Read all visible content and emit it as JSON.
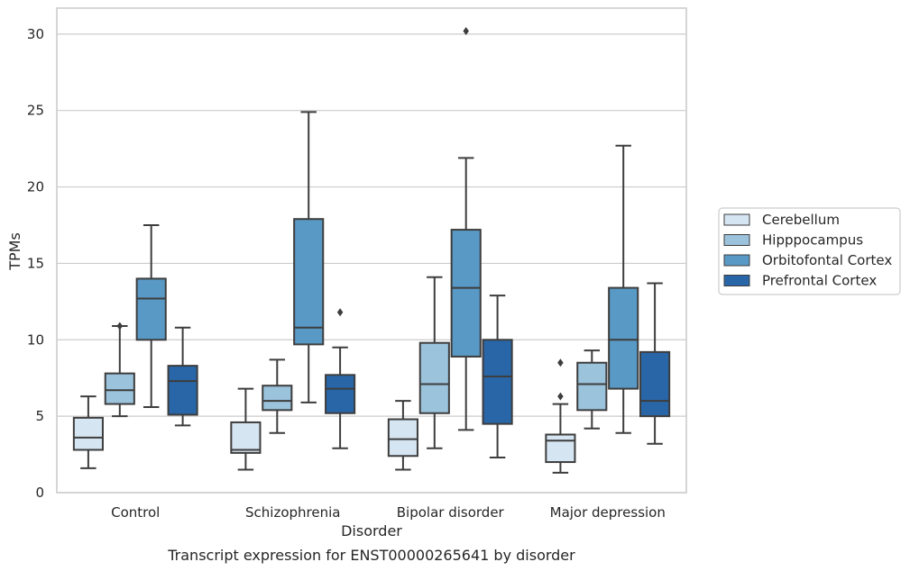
{
  "chart_data": {
    "type": "box",
    "xlabel": "Disorder",
    "ylabel": "TPMs",
    "caption": "Transcript expression for ENST00000265641 by disorder",
    "ylim": [
      0,
      31.7
    ],
    "yticks": [
      0,
      5,
      10,
      15,
      20,
      25,
      30
    ],
    "grid": "horizontal",
    "legend_position": "right",
    "categories": [
      "Control",
      "Schizophrenia",
      "Bipolar disorder",
      "Major depression"
    ],
    "series": [
      {
        "name": "Cerebellum",
        "color": "#d6e5f2",
        "boxes": [
          {
            "whisker_low": 1.6,
            "q1": 2.8,
            "median": 3.6,
            "q3": 4.9,
            "whisker_high": 6.3,
            "outliers": []
          },
          {
            "whisker_low": 1.5,
            "q1": 2.6,
            "median": 2.8,
            "q3": 4.6,
            "whisker_high": 6.8,
            "outliers": []
          },
          {
            "whisker_low": 1.5,
            "q1": 2.4,
            "median": 3.5,
            "q3": 4.8,
            "whisker_high": 6.0,
            "outliers": []
          },
          {
            "whisker_low": 1.3,
            "q1": 2.0,
            "median": 3.4,
            "q3": 3.8,
            "whisker_high": 5.8,
            "outliers": [
              6.3,
              8.5
            ]
          }
        ]
      },
      {
        "name": "Hipppocampus",
        "color": "#9bc3dc",
        "boxes": [
          {
            "whisker_low": 5.0,
            "q1": 5.8,
            "median": 6.7,
            "q3": 7.8,
            "whisker_high": 10.9,
            "outliers": [
              10.9
            ]
          },
          {
            "whisker_low": 3.9,
            "q1": 5.4,
            "median": 6.0,
            "q3": 7.0,
            "whisker_high": 8.7,
            "outliers": []
          },
          {
            "whisker_low": 2.9,
            "q1": 5.2,
            "median": 7.1,
            "q3": 9.8,
            "whisker_high": 14.1,
            "outliers": []
          },
          {
            "whisker_low": 4.2,
            "q1": 5.4,
            "median": 7.1,
            "q3": 8.5,
            "whisker_high": 9.3,
            "outliers": []
          }
        ]
      },
      {
        "name": "Orbitofontal Cortex",
        "color": "#5999c5",
        "boxes": [
          {
            "whisker_low": 5.6,
            "q1": 10.0,
            "median": 12.7,
            "q3": 14.0,
            "whisker_high": 17.5,
            "outliers": []
          },
          {
            "whisker_low": 5.9,
            "q1": 9.7,
            "median": 10.8,
            "q3": 17.9,
            "whisker_high": 24.9,
            "outliers": []
          },
          {
            "whisker_low": 4.1,
            "q1": 8.9,
            "median": 13.4,
            "q3": 17.2,
            "whisker_high": 21.9,
            "outliers": [
              30.2
            ]
          },
          {
            "whisker_low": 3.9,
            "q1": 6.8,
            "median": 10.0,
            "q3": 13.4,
            "whisker_high": 22.7,
            "outliers": []
          }
        ]
      },
      {
        "name": "Prefrontal Cortex",
        "color": "#2866a8",
        "boxes": [
          {
            "whisker_low": 4.4,
            "q1": 5.1,
            "median": 7.3,
            "q3": 8.3,
            "whisker_high": 10.8,
            "outliers": []
          },
          {
            "whisker_low": 2.9,
            "q1": 5.2,
            "median": 6.8,
            "q3": 7.7,
            "whisker_high": 9.5,
            "outliers": [
              11.8
            ]
          },
          {
            "whisker_low": 2.3,
            "q1": 4.5,
            "median": 7.6,
            "q3": 10.0,
            "whisker_high": 12.9,
            "outliers": []
          },
          {
            "whisker_low": 3.2,
            "q1": 5.0,
            "median": 6.0,
            "q3": 9.2,
            "whisker_high": 13.7,
            "outliers": []
          }
        ]
      }
    ],
    "line_color": "#3d3d3d",
    "grid_color": "#cccccc",
    "frame_color": "#cccccc"
  }
}
